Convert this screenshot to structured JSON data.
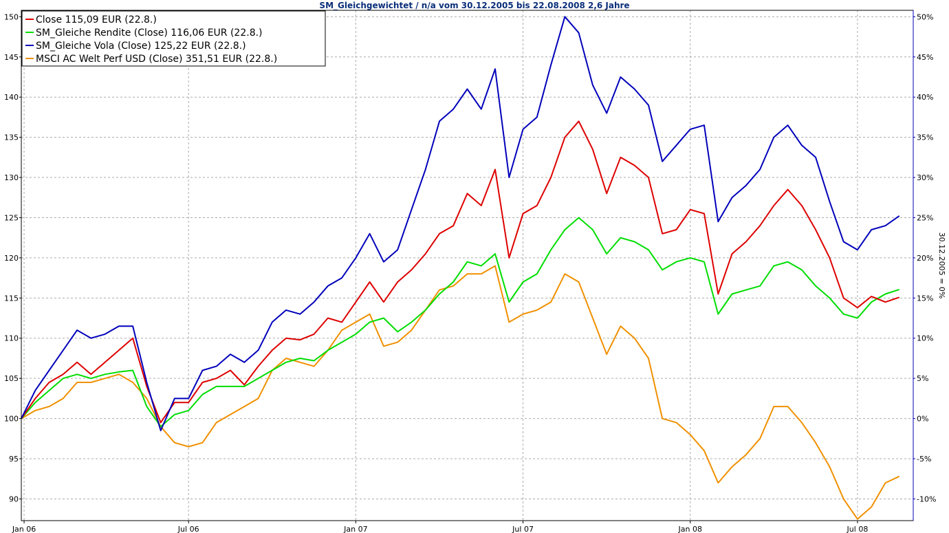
{
  "chart_data": {
    "type": "line",
    "title": "SM_Gleichgewichtet / n/a vom 30.12.2005 bis 22.08.2008 2,6 Jahre",
    "y_right_label": "30.12.2005 = 0%",
    "x_range": [
      0,
      32.0
    ],
    "x_ticks": [
      {
        "pos": 0.1,
        "label": "Jan 06"
      },
      {
        "pos": 6.0,
        "label": "Jul 06"
      },
      {
        "pos": 12.0,
        "label": "Jan 07"
      },
      {
        "pos": 18.0,
        "label": "Jul 07"
      },
      {
        "pos": 24.0,
        "label": "Jan 08"
      },
      {
        "pos": 30.0,
        "label": "Jul 08"
      }
    ],
    "ylim": [
      87.3,
      150.8
    ],
    "y_ticks": [
      90,
      95,
      100,
      105,
      110,
      115,
      120,
      125,
      130,
      135,
      140,
      145,
      150
    ],
    "y_right_ticks": [
      "-10%",
      "-5%",
      "0%",
      "5%",
      "10%",
      "15%",
      "20%",
      "25%",
      "30%",
      "35%",
      "40%",
      "45%",
      "50%"
    ],
    "grid": true,
    "legend_position": "top-left",
    "colors": {
      "Close": "#dd0000",
      "Rendite": "#00dd00",
      "Vola": "#0000bb",
      "MSCI": "#f09000",
      "title": "#0b2f7a",
      "grid": "#aaaaaa",
      "plot_border": "#000000"
    },
    "series": [
      {
        "name": "Close 115,09 EUR (22.8.)",
        "color": "#dd0000",
        "x": [
          0,
          0.5,
          1,
          1.5,
          2,
          2.5,
          3,
          3.5,
          4,
          4.5,
          5,
          5.5,
          6,
          6.5,
          7,
          7.5,
          8,
          8.5,
          9,
          9.5,
          10,
          10.5,
          11,
          11.5,
          12,
          12.5,
          13,
          13.5,
          14,
          14.5,
          15,
          15.5,
          16,
          16.5,
          17,
          17.5,
          18,
          18.5,
          19,
          19.5,
          20,
          20.5,
          21,
          21.5,
          22,
          22.5,
          23,
          23.5,
          24,
          24.5,
          25,
          25.5,
          26,
          26.5,
          27,
          27.5,
          28,
          28.5,
          29,
          29.5,
          30,
          30.5,
          31,
          31.5
        ],
        "values": [
          100,
          102.5,
          104.5,
          105.5,
          107,
          105.5,
          107,
          108.5,
          110,
          104,
          99.5,
          102,
          102,
          104.5,
          105,
          106,
          104.2,
          106.5,
          108.5,
          110,
          109.8,
          110.5,
          112.5,
          112,
          114.5,
          117,
          114.5,
          117,
          118.5,
          120.5,
          123,
          124,
          128,
          126.5,
          131,
          120,
          125.5,
          126.5,
          130,
          135,
          137,
          133.5,
          128,
          132.5,
          131.5,
          130,
          123,
          123.5,
          126,
          125.5,
          115.5,
          120.5,
          122,
          124,
          126.5,
          128.5,
          126.5,
          123.5,
          120,
          115,
          113.8,
          115.2,
          114.5,
          115.09
        ]
      },
      {
        "name": "SM_Gleiche Rendite (Close) 116,06 EUR (22.8.)",
        "color": "#00dd00",
        "x": [
          0,
          0.5,
          1,
          1.5,
          2,
          2.5,
          3,
          3.5,
          4,
          4.5,
          5,
          5.5,
          6,
          6.5,
          7,
          7.5,
          8,
          8.5,
          9,
          9.5,
          10,
          10.5,
          11,
          11.5,
          12,
          12.5,
          13,
          13.5,
          14,
          14.5,
          15,
          15.5,
          16,
          16.5,
          17,
          17.5,
          18,
          18.5,
          19,
          19.5,
          20,
          20.5,
          21,
          21.5,
          22,
          22.5,
          23,
          23.5,
          24,
          24.5,
          25,
          25.5,
          26,
          26.5,
          27,
          27.5,
          28,
          28.5,
          29,
          29.5,
          30,
          30.5,
          31,
          31.5
        ],
        "values": [
          100,
          102,
          103.5,
          105,
          105.5,
          105,
          105.5,
          105.8,
          106,
          101.5,
          99,
          100.5,
          101,
          103,
          104,
          104,
          104,
          105,
          106,
          107,
          107.5,
          107.2,
          108.5,
          109.5,
          110.5,
          112,
          112.5,
          110.8,
          112,
          113.5,
          115.5,
          117,
          119.5,
          119,
          120.5,
          114.5,
          117,
          118,
          121,
          123.5,
          125,
          123.5,
          120.5,
          122.5,
          122,
          121,
          118.5,
          119.5,
          120,
          119.5,
          113,
          115.5,
          116,
          116.5,
          119,
          119.5,
          118.5,
          116.5,
          115,
          113,
          112.5,
          114.5,
          115.5,
          116.06
        ]
      },
      {
        "name": "SM_Gleiche Vola (Close) 125,22 EUR (22.8.)",
        "color": "#0000bb",
        "x": [
          0,
          0.5,
          1,
          1.5,
          2,
          2.5,
          3,
          3.5,
          4,
          4.5,
          5,
          5.5,
          6,
          6.5,
          7,
          7.5,
          8,
          8.5,
          9,
          9.5,
          10,
          10.5,
          11,
          11.5,
          12,
          12.5,
          13,
          13.5,
          14,
          14.5,
          15,
          15.5,
          16,
          16.5,
          17,
          17.5,
          18,
          18.5,
          19,
          19.5,
          20,
          20.5,
          21,
          21.5,
          22,
          22.5,
          23,
          23.5,
          24,
          24.5,
          25,
          25.5,
          26,
          26.5,
          27,
          27.5,
          28,
          28.5,
          29,
          29.5,
          30,
          30.5,
          31,
          31.5
        ],
        "values": [
          100,
          103.5,
          106,
          108.5,
          111,
          110,
          110.5,
          111.5,
          111.5,
          104.5,
          98.5,
          102.5,
          102.5,
          106,
          106.5,
          108,
          107,
          108.5,
          112,
          113.5,
          113,
          114.5,
          116.5,
          117.5,
          120,
          123,
          119.5,
          121,
          126,
          131,
          137,
          138.5,
          141,
          138.5,
          143.5,
          130,
          136,
          137.5,
          144,
          150,
          148,
          141.5,
          138,
          142.5,
          141,
          139,
          132,
          134,
          136,
          136.5,
          124.5,
          127.5,
          129,
          131,
          135,
          136.5,
          134,
          132.5,
          127,
          122,
          121,
          123.5,
          124,
          125.22
        ]
      },
      {
        "name": "MSCI AC Welt Perf USD (Close) 351,51 EUR (22.8.)",
        "color": "#f09000",
        "x": [
          0,
          0.5,
          1,
          1.5,
          2,
          2.5,
          3,
          3.5,
          4,
          4.5,
          5,
          5.5,
          6,
          6.5,
          7,
          7.5,
          8,
          8.5,
          9,
          9.5,
          10,
          10.5,
          11,
          11.5,
          12,
          12.5,
          13,
          13.5,
          14,
          14.5,
          15,
          15.5,
          16,
          16.5,
          17,
          17.5,
          18,
          18.5,
          19,
          19.5,
          20,
          20.5,
          21,
          21.5,
          22,
          22.5,
          23,
          23.5,
          24,
          24.5,
          25,
          25.5,
          26,
          26.5,
          27,
          27.5,
          28,
          28.5,
          29,
          29.5,
          30,
          30.5,
          31,
          31.5
        ],
        "values": [
          100,
          101,
          101.5,
          102.5,
          104.5,
          104.5,
          105,
          105.5,
          104.5,
          102.5,
          99,
          97,
          96.5,
          97,
          99.5,
          100.5,
          101.5,
          102.5,
          106,
          107.5,
          107,
          106.5,
          108.5,
          111,
          112,
          113,
          109,
          109.5,
          111,
          113.5,
          116,
          116.5,
          118,
          118,
          119,
          112,
          113,
          113.5,
          114.5,
          118,
          117,
          112.5,
          108,
          111.5,
          110,
          107.5,
          100,
          99.5,
          98,
          96,
          92,
          94,
          95.5,
          97.5,
          101.5,
          101.5,
          99.5,
          97,
          94,
          90,
          87.5,
          89,
          92,
          92.8
        ]
      }
    ]
  }
}
